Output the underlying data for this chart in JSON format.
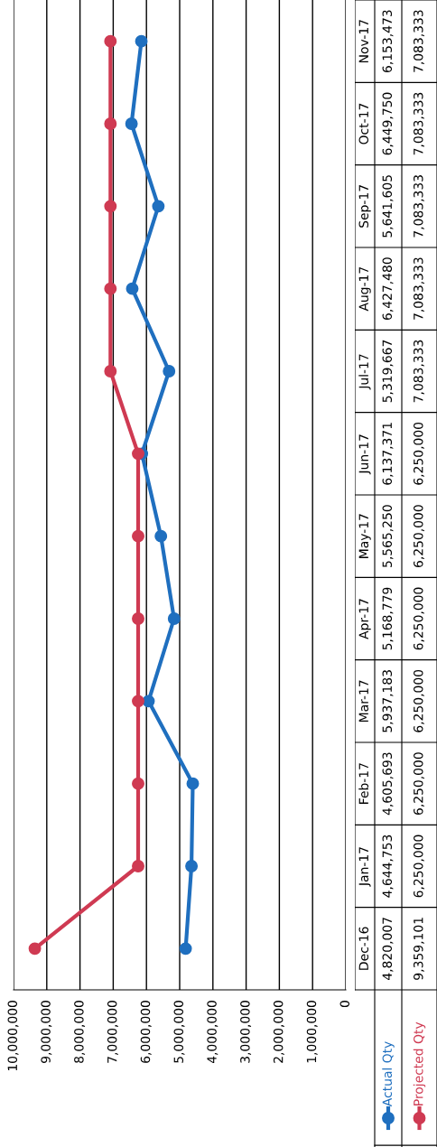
{
  "chart_data": {
    "type": "line",
    "orientation": "horizontal",
    "categories": [
      "Nov-17",
      "Oct-17",
      "Sep-17",
      "Aug-17",
      "Jul-17",
      "Jun-17",
      "May-17",
      "Apr-17",
      "Mar-17",
      "Feb-17",
      "Jan-17",
      "Dec-16"
    ],
    "series": [
      {
        "name": "Actual Qty",
        "color": "#1f6fbf",
        "values": [
          6153473,
          6449750,
          5641605,
          6427480,
          5319667,
          6137371,
          5565250,
          5168779,
          5937183,
          4605693,
          4644753,
          4820007
        ],
        "value_labels": [
          "6,153,473",
          "6,449,750",
          "5,641,605",
          "6,427,480",
          "5,319,667",
          "6,137,371",
          "5,565,250",
          "5,168,779",
          "5,937,183",
          "4,605,693",
          "4,644,753",
          "4,820,007"
        ]
      },
      {
        "name": "Projected Qty",
        "color": "#cf3a52",
        "values": [
          7083333,
          7083333,
          7083333,
          7083333,
          7083333,
          6250000,
          6250000,
          6250000,
          6250000,
          6250000,
          6250000,
          9359101
        ],
        "value_labels": [
          "7,083,333",
          "7,083,333",
          "7,083,333",
          "7,083,333",
          "7,083,333",
          "6,250,000",
          "6,250,000",
          "6,250,000",
          "6,250,000",
          "6,250,000",
          "6,250,000",
          "9,359,101"
        ]
      }
    ],
    "xlim": [
      10000000,
      0
    ],
    "xticks": [
      {
        "value": 10000000,
        "label": "10,000,000"
      },
      {
        "value": 9000000,
        "label": "9,000,000"
      },
      {
        "value": 8000000,
        "label": "8,000,000"
      },
      {
        "value": 7000000,
        "label": "7,000,000"
      },
      {
        "value": 6000000,
        "label": "6,000,000"
      },
      {
        "value": 5000000,
        "label": "5,000,000"
      },
      {
        "value": 4000000,
        "label": "4,000,000"
      },
      {
        "value": 3000000,
        "label": "3,000,000"
      },
      {
        "value": 2000000,
        "label": "2,000,000"
      },
      {
        "value": 1000000,
        "label": "1,000,000"
      },
      {
        "value": 0,
        "label": "0"
      }
    ],
    "grid": "x",
    "legend": "bottom",
    "marker": "circle",
    "line_style": "solid"
  }
}
